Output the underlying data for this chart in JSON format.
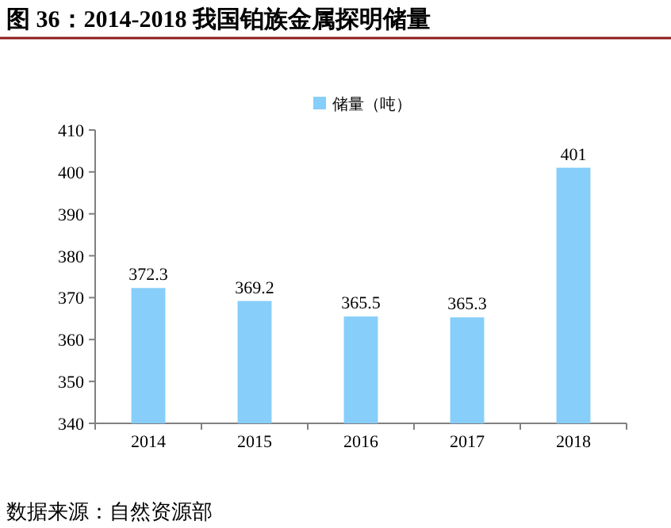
{
  "chart_data": {
    "type": "bar",
    "title": "图 36：2014-2018 我国铂族金属探明储量",
    "categories": [
      "2014",
      "2015",
      "2016",
      "2017",
      "2018"
    ],
    "series": [
      {
        "name": "储量（吨）",
        "color": "#87cefa",
        "values": [
          372.3,
          369.2,
          365.5,
          365.3,
          401
        ]
      }
    ],
    "ylim": [
      340,
      410
    ],
    "yticks": [
      340,
      350,
      360,
      370,
      380,
      390,
      400,
      410
    ],
    "data_labels": true,
    "legend": "top",
    "annotations": [
      "数据来源：自然资源部"
    ]
  }
}
